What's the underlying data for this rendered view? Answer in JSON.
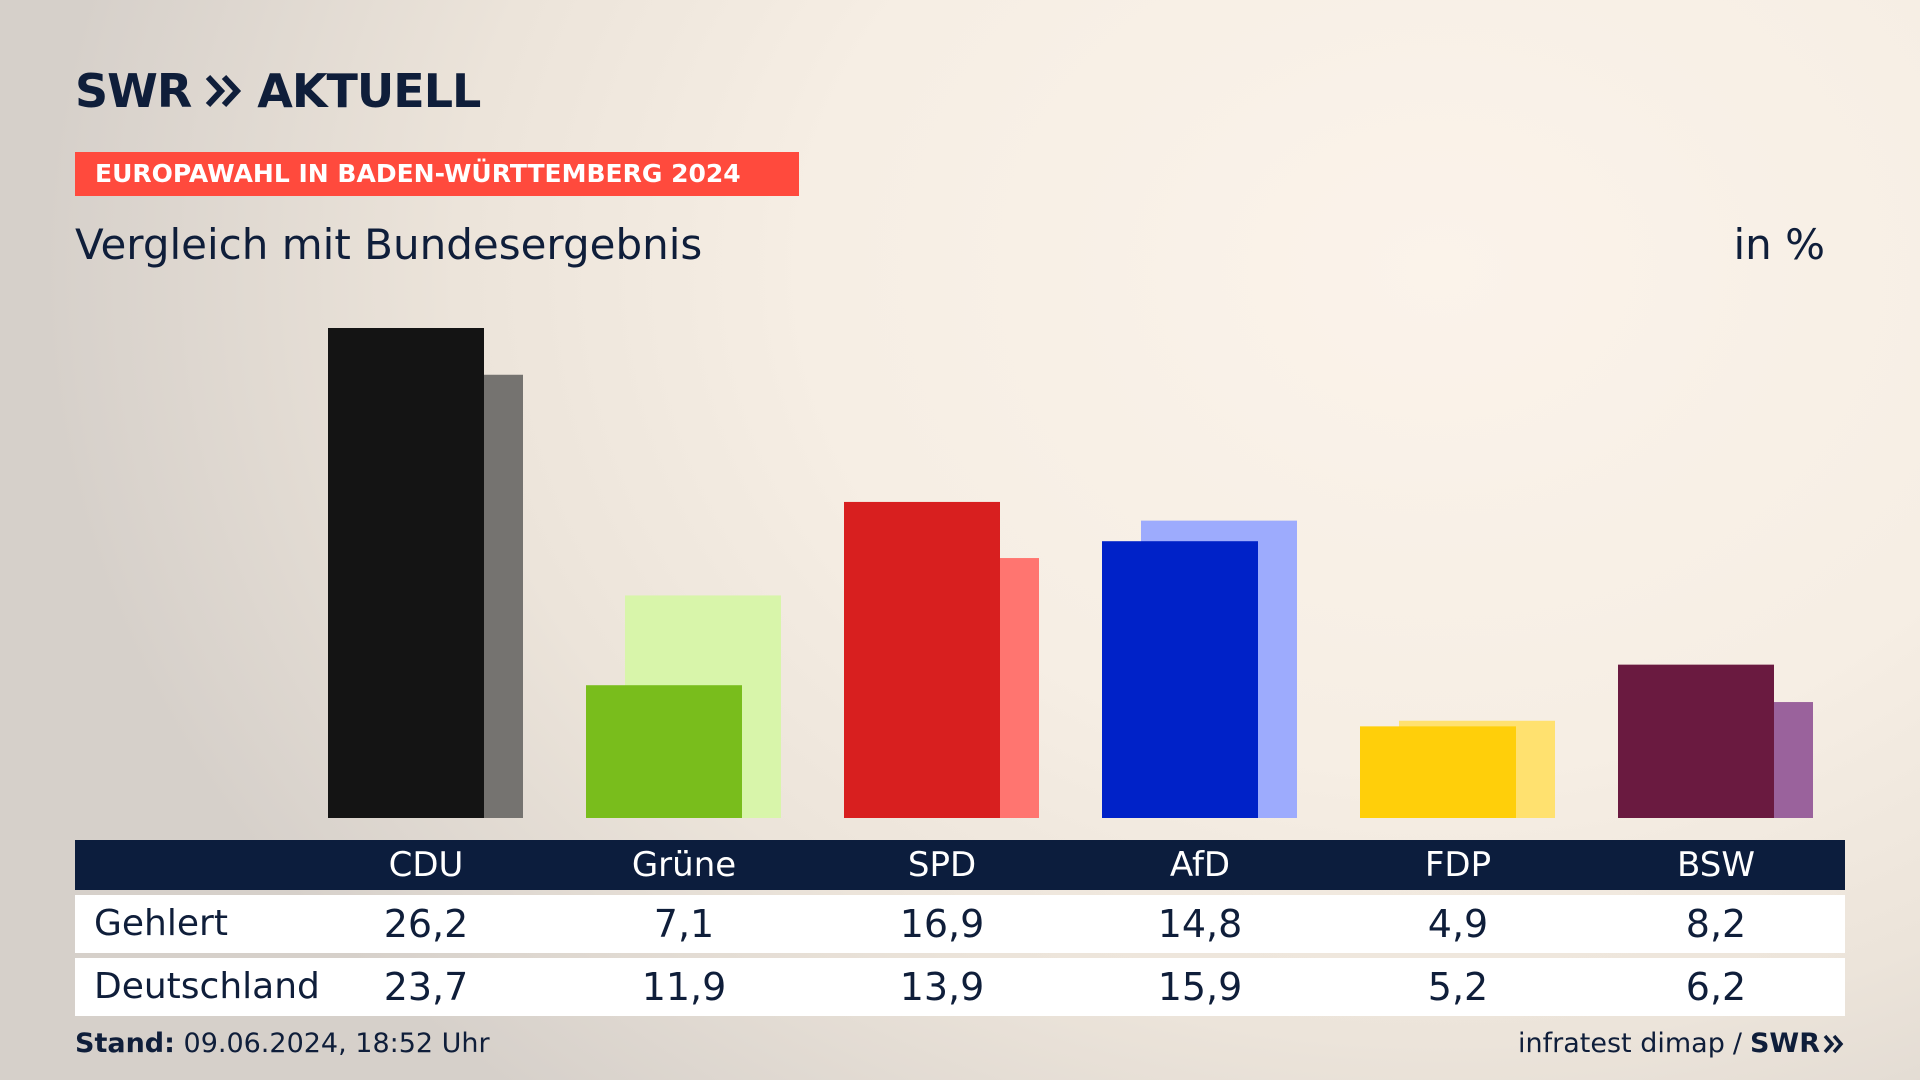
{
  "brand": {
    "logo_swr": "SWR",
    "logo_aktuell": "AKTUELL"
  },
  "header": {
    "kicker": "EUROPAWAHL IN BADEN-WÜRTTEMBERG 2024",
    "subtitle": "Vergleich mit Bundesergebnis",
    "unit": "in %"
  },
  "chart_data": {
    "type": "bar",
    "categories": [
      "CDU",
      "Grüne",
      "SPD",
      "AfD",
      "FDP",
      "BSW"
    ],
    "series": [
      {
        "name": "Gehlert",
        "values": [
          26.2,
          7.1,
          16.9,
          14.8,
          4.9,
          8.2
        ]
      },
      {
        "name": "Deutschland",
        "values": [
          23.7,
          11.9,
          13.9,
          15.9,
          5.2,
          6.2
        ]
      }
    ],
    "ylim": [
      0,
      26.2
    ],
    "grid": false,
    "colors": {
      "primary": [
        "#141414",
        "#79bd1c",
        "#d81f1f",
        "#0022c8",
        "#ffcf0a",
        "#6a1a40"
      ],
      "secondary": [
        "#757370",
        "#d8f5aa",
        "#ff7570",
        "#9dabfd",
        "#ffe16f",
        "#9a629c"
      ]
    }
  },
  "table": {
    "row_labels": [
      "Gehlert",
      "Deutschland"
    ],
    "rows": [
      [
        "26,2",
        "7,1",
        "16,9",
        "14,8",
        "4,9",
        "8,2"
      ],
      [
        "23,7",
        "11,9",
        "13,9",
        "15,9",
        "5,2",
        "6,2"
      ]
    ]
  },
  "footer": {
    "stand_label": "Stand:",
    "stand_value": "09.06.2024, 18:52 Uhr",
    "source": "infratest dimap",
    "separator": "/",
    "source_brand": "SWR"
  },
  "theme": {
    "navy": "#0c1d3d",
    "accent": "#ff4a3d"
  }
}
